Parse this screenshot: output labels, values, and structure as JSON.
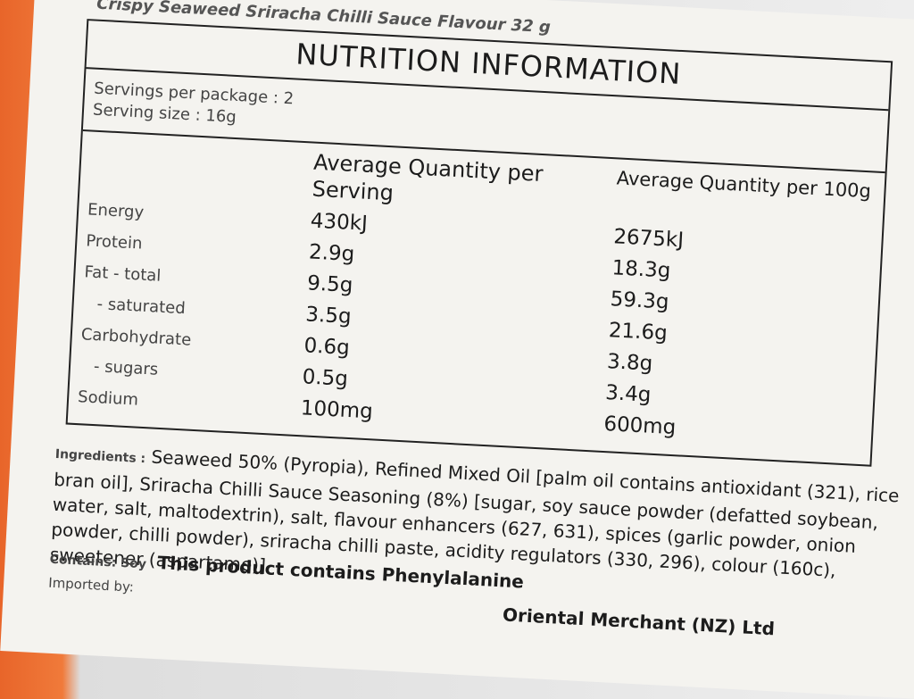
{
  "product_title": "Crispy Seaweed Sriracha Chilli Sauce Flavour 32 g",
  "table": {
    "title": "NUTRITION INFORMATION",
    "servings_per_package": "Servings per package : 2",
    "serving_size": "Serving size : 16g",
    "headers": [
      "Average Quantity per Serving",
      "Average Quantity per 100g"
    ],
    "rows": [
      [
        "Energy",
        "430kJ",
        "2675kJ"
      ],
      [
        "Protein",
        "2.9g",
        "18.3g"
      ],
      [
        "Fat - total",
        "9.5g",
        "59.3g"
      ],
      [
        "- saturated",
        "3.5g",
        "21.6g"
      ],
      [
        "Carbohydrate",
        "0.6g",
        "3.8g"
      ],
      [
        "- sugars",
        "0.5g",
        "3.4g"
      ],
      [
        "Sodium",
        "100mg",
        "600mg"
      ]
    ]
  },
  "ingredients": {
    "label": "Ingredients :",
    "text": "Seaweed 50% (Pyropia), Refined Mixed Oil [palm oil contains antioxidant (321), rice bran oil], Sriracha Chilli Sauce Seasoning (8%) [sugar, soy sauce powder (defatted soybean, water, salt, maltodextrin), salt, flavour enhancers (627, 631), spices (garlic powder, onion powder, chilli powder), sriracha chilli paste, acidity regulators (330, 296), colour (160c), sweetener (aspartame)]"
  },
  "contains": {
    "label": "Contains: Soy",
    "text": "This product contains Phenylalanine"
  },
  "imported_by": "Imported by:",
  "importer": "Oriental Merchant (NZ) Ltd"
}
